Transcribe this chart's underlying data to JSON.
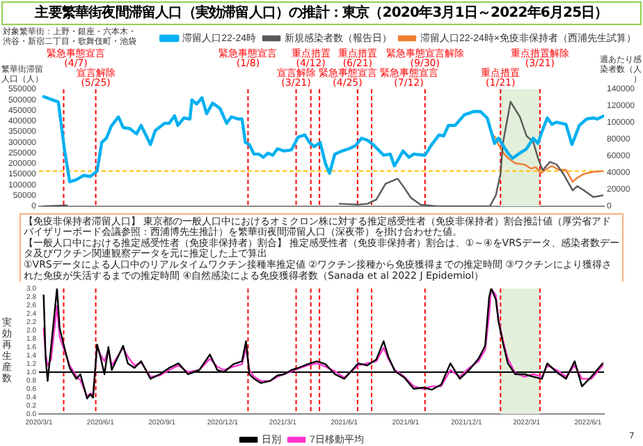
{
  "chart_data": [
    {
      "type": "line",
      "title": "主要繁華街夜間滞留人口（実効滞留人口）の推計：東京（2020年3月1日～2022年6月25日）",
      "ylabel": "繁華街滞留人口（人）",
      "y2label": "週あたり感染者数（人）",
      "annotations": [
        "対象繁華街：上野・銀座・六本木・渋谷・新宿二丁目・歌舞伎町・池袋",
        "【免疫非保持者滞留人口】",
        "東京都の一般人口中におけるオミクロン株に対する推定感受性者（免疫非保持者）割合推計値（厚労省アドバイザリーボード会議参照：西浦博先生推計）を繁華街夜間滞留人口（深夜帯）を掛け合わせた値。",
        "【一般人口中における推定感受性者（免疫非保持者）割合】",
        "推定感受性者（免疫非保持者）割合は、①～④をVRSデータ、感染者数データ及びワクチン関連観察データを元に推定した上で算出",
        "①VRSデータによる人口中のリアルタイムワクチン接種率推定値",
        "②ワクチン接種から免疫獲得までの推定時間",
        "③ワクチンにより獲得された免疫が失活するまでの推定時間",
        "④自然感染による免疫獲得者数（Sanada et al 2022 J Epidemiol）"
      ],
      "series": [
        {
          "name": "滞留人口22-24時",
          "color": "#00b0f0",
          "x": [
            "2020-03-08",
            "2020-03-30",
            "2020-04-08",
            "2020-04-16",
            "2020-04-26",
            "2020-05-07",
            "2020-05-17",
            "2020-05-27",
            "2020-06-03",
            "2020-06-10",
            "2020-06-17",
            "2020-06-28",
            "2020-07-05",
            "2020-07-15",
            "2020-07-25",
            "2020-08-01",
            "2020-08-15",
            "2020-08-22",
            "2020-09-05",
            "2020-09-12",
            "2020-09-20",
            "2020-09-25",
            "2020-10-04",
            "2020-10-13",
            "2020-10-16",
            "2020-10-23",
            "2020-10-31",
            "2020-11-07",
            "2020-11-16",
            "2020-11-27",
            "2020-12-07",
            "2020-12-14",
            "2020-12-24",
            "2020-12-30",
            "2021-01-04",
            "2021-01-10",
            "2021-01-17",
            "2021-01-24",
            "2021-01-31",
            "2021-02-07",
            "2021-02-14",
            "2021-02-21",
            "2021-03-03",
            "2021-03-14",
            "2021-03-24",
            "2021-04-03",
            "2021-04-10",
            "2021-04-17",
            "2021-04-26",
            "2021-05-04",
            "2021-05-10",
            "2021-05-18",
            "2021-05-29",
            "2021-06-08",
            "2021-06-18",
            "2021-06-27",
            "2021-07-06",
            "2021-07-16",
            "2021-07-30",
            "2021-08-09",
            "2021-08-15",
            "2021-08-20",
            "2021-08-28",
            "2021-09-06",
            "2021-09-13",
            "2021-09-30",
            "2021-10-10",
            "2021-10-21",
            "2021-10-28",
            "2021-11-04",
            "2021-11-14",
            "2021-11-28",
            "2021-12-12",
            "2021-12-22",
            "2022-01-01",
            "2022-01-08",
            "2022-01-12",
            "2022-01-18",
            "2022-01-25",
            "2022-02-01",
            "2022-02-08",
            "2022-02-19",
            "2022-03-01",
            "2022-03-11",
            "2022-03-18",
            "2022-03-24",
            "2022-04-01",
            "2022-04-08",
            "2022-04-15",
            "2022-04-29",
            "2022-05-08",
            "2022-05-19",
            "2022-05-30",
            "2022-06-09",
            "2022-06-15",
            "2022-06-25"
          ],
          "values": [
            515000,
            490000,
            270000,
            115000,
            125000,
            145000,
            140000,
            165000,
            300000,
            320000,
            375000,
            420000,
            370000,
            365000,
            340000,
            380000,
            290000,
            355000,
            390000,
            390000,
            425000,
            380000,
            415000,
            410000,
            500000,
            480000,
            510000,
            435000,
            485000,
            460000,
            390000,
            420000,
            410000,
            410000,
            300000,
            290000,
            245000,
            245000,
            230000,
            250000,
            240000,
            270000,
            260000,
            265000,
            325000,
            335000,
            300000,
            280000,
            300000,
            200000,
            155000,
            245000,
            260000,
            270000,
            285000,
            320000,
            310000,
            285000,
            240000,
            245000,
            190000,
            215000,
            260000,
            230000,
            245000,
            240000,
            290000,
            335000,
            330000,
            380000,
            380000,
            430000,
            445000,
            445000,
            415000,
            340000,
            295000,
            320000,
            285000,
            250000,
            225000,
            250000,
            270000,
            320000,
            295000,
            350000,
            415000,
            385000,
            395000,
            385000,
            290000,
            380000,
            410000,
            415000,
            410000,
            425000
          ]
        },
        {
          "name": "新規感染者数（報告日）",
          "color": "#595959",
          "axis": "y2",
          "x": [
            "2020-03-08",
            "2020-04-12",
            "2020-04-20",
            "2021-05-25",
            "2021-06-22",
            "2021-07-06",
            "2021-07-19",
            "2021-08-02",
            "2021-08-20",
            "2021-08-30",
            "2021-09-09",
            "2021-09-23",
            "2021-10-17",
            "2022-01-05",
            "2022-01-14",
            "2022-01-21",
            "2022-01-25",
            "2022-02-05",
            "2022-02-19",
            "2022-03-01",
            "2022-03-11",
            "2022-03-18",
            "2022-03-25",
            "2022-04-05",
            "2022-04-15",
            "2022-04-25",
            "2022-05-09",
            "2022-05-16",
            "2022-05-26",
            "2022-06-09",
            "2022-06-23"
          ],
          "values": [
            0,
            1000,
            null,
            3000,
            2000,
            3000,
            8000,
            27000,
            33000,
            22000,
            10000,
            2000,
            0,
            0,
            13000,
            39000,
            77000,
            125000,
            107000,
            84000,
            77000,
            58000,
            43000,
            53000,
            50000,
            39000,
            19000,
            24000,
            19000,
            11000,
            13000
          ]
        },
        {
          "name": "滞留人口22-24時×免疫非保持者（西浦先生試算）",
          "color": "#ed7d31",
          "x": [
            "2022-01-08",
            "2022-01-14",
            "2022-01-18",
            "2022-01-25",
            "2022-02-01",
            "2022-02-12",
            "2022-02-26",
            "2022-03-08",
            "2022-03-15",
            "2022-03-22",
            "2022-04-01",
            "2022-04-08",
            "2022-04-18",
            "2022-04-29",
            "2022-05-09",
            "2022-05-16",
            "2022-05-26",
            "2022-06-09",
            "2022-06-23"
          ],
          "values": [
            340000,
            320000,
            290000,
            252000,
            227000,
            202000,
            196000,
            177000,
            184000,
            155000,
            177000,
            190000,
            171000,
            171000,
            115000,
            134000,
            152000,
            162000,
            165000
          ]
        }
      ],
      "xlim": [
        "2020-03-01",
        "2022-06-25"
      ],
      "ylim": [
        0,
        550000
      ],
      "yticks": [
        0,
        50000,
        100000,
        150000,
        200000,
        250000,
        300000,
        350000,
        400000,
        450000,
        500000,
        550000
      ],
      "y2lim": [
        0,
        140000
      ],
      "y2ticks": [
        0,
        20000,
        40000,
        60000,
        80000,
        100000,
        120000,
        140000
      ],
      "ref_lines": [
        {
          "axis": "x",
          "value": "2020-04-07",
          "label": "緊急事態宣言 (4/7)",
          "color": "#ff0000",
          "line_style": "dashed"
        },
        {
          "axis": "x",
          "value": "2020-05-25",
          "label": "宣言解除 (5/25)",
          "color": "#ff0000",
          "line_style": "dashed"
        },
        {
          "axis": "x",
          "value": "2021-01-08",
          "label": "緊急事態宣言 (1/8)",
          "color": "#ff0000",
          "line_style": "dashed"
        },
        {
          "axis": "x",
          "value": "2021-03-21",
          "label": "宣言解除 (3/21)",
          "color": "#ff0000",
          "line_style": "dashed"
        },
        {
          "axis": "x",
          "value": "2021-04-12",
          "label": "重点措置 (4/12)",
          "color": "#ff0000",
          "line_style": "dashed"
        },
        {
          "axis": "x",
          "value": "2021-04-25",
          "label": "緊急事態宣言 (4/25)",
          "color": "#ff0000",
          "line_style": "dashed"
        },
        {
          "axis": "x",
          "value": "2021-06-21",
          "label": "重点措置 (6/21)",
          "color": "#ff0000",
          "line_style": "dashed"
        },
        {
          "axis": "x",
          "value": "2021-07-12",
          "label": "緊急事態宣言 (7/12)",
          "color": "#ff0000",
          "line_style": "dashed"
        },
        {
          "axis": "x",
          "value": "2021-09-30",
          "label": "緊急事態宣言解除 (9/30)",
          "color": "#ff0000",
          "line_style": "dashed"
        },
        {
          "axis": "x",
          "value": "2022-01-21",
          "label": "重点措置 (1/21)",
          "color": "#ff0000",
          "line_style": "dashed"
        },
        {
          "axis": "x",
          "value": "2022-03-21",
          "label": "重点措置解除 (3/21)",
          "color": "#ff0000",
          "line_style": "dashed"
        },
        {
          "axis": "y",
          "value": 165000,
          "color": "#ffc000",
          "line_style": "dashed"
        }
      ],
      "bands": [
        {
          "axis": "x",
          "from": "2022-01-21",
          "to": "2022-03-21",
          "color": "#e2efda"
        }
      ],
      "legend": "top right",
      "marker": "none",
      "tick_labels": "y"
    },
    {
      "type": "line",
      "ylabel": "実効再生産数",
      "annotations": [
        "7"
      ],
      "x": [
        "2020-03-08",
        "2020-03-11",
        "2020-03-14",
        "2020-03-19",
        "2020-03-28",
        "2020-04-01",
        "2020-04-09",
        "2020-04-16",
        "2020-04-26",
        "2020-05-02",
        "2020-05-12",
        "2020-05-17",
        "2020-05-21",
        "2020-05-27",
        "2020-06-01",
        "2020-06-07",
        "2020-06-13",
        "2020-06-18",
        "2020-07-05",
        "2020-07-12",
        "2020-07-22",
        "2020-08-01",
        "2020-08-15",
        "2020-08-29",
        "2020-09-12",
        "2020-09-26",
        "2020-10-10",
        "2020-10-27",
        "2020-11-12",
        "2020-11-23",
        "2020-12-03",
        "2020-12-17",
        "2020-12-30",
        "2021-01-05",
        "2021-01-10",
        "2021-01-17",
        "2021-01-27",
        "2021-02-10",
        "2021-02-21",
        "2021-03-03",
        "2021-03-14",
        "2021-03-24",
        "2021-04-07",
        "2021-04-21",
        "2021-05-04",
        "2021-05-18",
        "2021-06-01",
        "2021-06-22",
        "2021-07-05",
        "2021-07-19",
        "2021-07-30",
        "2021-08-06",
        "2021-08-16",
        "2021-08-30",
        "2021-09-13",
        "2021-09-27",
        "2021-10-10",
        "2021-10-24",
        "2021-11-07",
        "2021-11-21",
        "2021-12-05",
        "2021-12-19",
        "2021-12-29",
        "2022-01-04",
        "2022-01-07",
        "2022-01-14",
        "2022-01-18",
        "2022-01-25",
        "2022-02-01",
        "2022-02-12",
        "2022-02-26",
        "2022-03-11",
        "2022-03-24",
        "2022-04-01",
        "2022-04-15",
        "2022-04-29",
        "2022-05-12",
        "2022-05-23",
        "2022-06-06",
        "2022-06-23"
      ],
      "series": [
        {
          "name": "日別",
          "color": "#000000",
          "values": [
            2.84,
            1.32,
            0.79,
            1.58,
            3.0,
            2.05,
            1.53,
            1.1,
            0.84,
            0.95,
            0.37,
            0.47,
            0.39,
            1.66,
            1.37,
            0.95,
            1.6,
            1.05,
            1.63,
            1.21,
            1.1,
            1.26,
            0.84,
            0.95,
            1.1,
            1.21,
            0.95,
            1.05,
            1.42,
            1.05,
            1.0,
            1.19,
            1.26,
            1.74,
            0.95,
            0.84,
            0.74,
            0.79,
            0.92,
            0.95,
            1.05,
            1.1,
            1.19,
            1.26,
            1.19,
            0.95,
            0.84,
            1.21,
            1.16,
            1.3,
            1.74,
            1.37,
            1.02,
            0.87,
            0.6,
            0.63,
            0.58,
            0.7,
            1.21,
            0.84,
            1.05,
            1.32,
            1.63,
            2.79,
            3.0,
            2.74,
            2.21,
            1.68,
            1.21,
            0.95,
            0.95,
            0.89,
            0.84,
            1.21,
            1.0,
            0.84,
            1.26,
            0.66,
            0.89,
            1.21
          ]
        },
        {
          "name": "7日移動平均",
          "color": "#ff33cc",
          "values": [
            2.05,
            1.42,
            1.16,
            1.3,
            2.58,
            1.84,
            1.47,
            1.16,
            0.9,
            0.81,
            0.42,
            0.49,
            0.45,
            1.6,
            1.42,
            1.26,
            1.53,
            1.16,
            1.58,
            1.37,
            1.16,
            1.23,
            0.89,
            0.92,
            1.05,
            1.16,
            1.0,
            1.05,
            1.32,
            1.13,
            1.05,
            1.13,
            1.19,
            1.58,
            1.05,
            0.89,
            0.79,
            0.79,
            0.89,
            0.95,
            1.02,
            1.08,
            1.16,
            1.21,
            1.13,
            1.02,
            0.87,
            1.16,
            1.21,
            1.26,
            1.58,
            1.32,
            1.05,
            0.89,
            0.66,
            0.6,
            0.66,
            0.66,
            1.05,
            0.89,
            1.1,
            1.26,
            1.53,
            2.37,
            3.0,
            2.84,
            2.26,
            1.74,
            1.32,
            0.98,
            0.89,
            0.95,
            0.89,
            1.16,
            1.05,
            0.89,
            1.16,
            0.84,
            0.84,
            1.16
          ]
        }
      ],
      "xlim": [
        "2020-03-01",
        "2022-06-25"
      ],
      "ylim": [
        0,
        3
      ],
      "xticks": [
        {
          "value": "2020-03-01",
          "label": "2020/3/1"
        },
        {
          "value": "2020-06-01",
          "label": "2020/6/1"
        },
        {
          "value": "2020-09-01",
          "label": "2020/9/1"
        },
        {
          "value": "2020-12-01",
          "label": "2020/12/1"
        },
        {
          "value": "2021-03-01",
          "label": "2021/3/1"
        },
        {
          "value": "2021-06-01",
          "label": "2021/6/1"
        },
        {
          "value": "2021-09-01",
          "label": "2021/9/1"
        },
        {
          "value": "2021-12-01",
          "label": "2021/12/1"
        },
        {
          "value": "2022-03-01",
          "label": "2022/3/1"
        },
        {
          "value": "2022-06-01",
          "label": "2022/6/1"
        }
      ],
      "yticks": [
        {
          "value": 0,
          "label": "0.0"
        },
        0.2,
        0.4,
        0.6,
        0.8,
        {
          "value": 1,
          "label": "1.0"
        },
        1.2,
        1.4,
        1.6,
        1.8,
        {
          "value": 2,
          "label": "2.0"
        },
        2.2,
        2.4,
        2.6,
        2.8,
        {
          "value": 3,
          "label": "3.0"
        }
      ],
      "ref_lines": [
        {
          "axis": "x",
          "value": "2020-04-07",
          "color": "#ff0000",
          "line_style": "dashed"
        },
        {
          "axis": "x",
          "value": "2020-05-25",
          "color": "#ff0000",
          "line_style": "dashed"
        },
        {
          "axis": "x",
          "value": "2021-01-08",
          "color": "#ff0000",
          "line_style": "dashed"
        },
        {
          "axis": "x",
          "value": "2021-03-21",
          "color": "#ff0000",
          "line_style": "dashed"
        },
        {
          "axis": "x",
          "value": "2021-04-12",
          "color": "#ff0000",
          "line_style": "dashed"
        },
        {
          "axis": "x",
          "value": "2021-04-25",
          "color": "#ff0000",
          "line_style": "dashed"
        },
        {
          "axis": "x",
          "value": "2021-06-21",
          "color": "#ff0000",
          "line_style": "dashed"
        },
        {
          "axis": "x",
          "value": "2021-07-12",
          "color": "#ff0000",
          "line_style": "dashed"
        },
        {
          "axis": "x",
          "value": "2021-09-30",
          "color": "#ff0000",
          "line_style": "dashed"
        },
        {
          "axis": "x",
          "value": "2022-01-21",
          "color": "#ff0000",
          "line_style": "dashed"
        },
        {
          "axis": "x",
          "value": "2022-03-21",
          "color": "#ff0000",
          "line_style": "dashed"
        },
        {
          "axis": "y",
          "value": 1,
          "color": "#000000",
          "line_style": "solid"
        }
      ],
      "bands": [
        {
          "axis": "x",
          "from": "2022-01-21",
          "to": "2022-03-21",
          "color": "#e2efda"
        }
      ],
      "legend": "bottom",
      "marker": "none"
    }
  ]
}
